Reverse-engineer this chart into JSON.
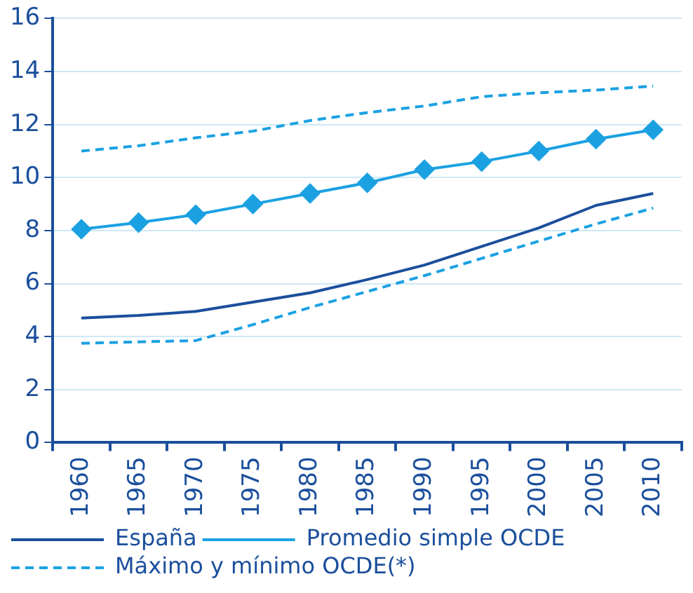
{
  "chart_data": {
    "type": "line",
    "categories": [
      "1960",
      "1965",
      "1970",
      "1975",
      "1980",
      "1985",
      "1990",
      "1995",
      "2000",
      "2005",
      "2010"
    ],
    "series": [
      {
        "name": "España",
        "color": "#1b4f9c",
        "values": [
          4.7,
          4.8,
          4.95,
          5.3,
          5.65,
          6.15,
          6.7,
          7.4,
          8.1,
          8.95,
          9.4
        ],
        "marker": "none",
        "line_style": "solid"
      },
      {
        "name": "Promedio simple OCDE",
        "color": "#1ba1e2",
        "values": [
          8.05,
          8.3,
          8.6,
          9.0,
          9.4,
          9.8,
          10.3,
          10.6,
          11.0,
          11.45,
          11.8
        ],
        "marker": "diamond",
        "line_style": "solid"
      },
      {
        "name": "Máximo y mínimo OCDE(*)",
        "color": "#1ba1e2",
        "values": [
          11.0,
          11.2,
          11.5,
          11.75,
          12.15,
          12.45,
          12.7,
          13.05,
          13.2,
          13.3,
          13.45
        ],
        "marker": "none",
        "line_style": "dashed"
      },
      {
        "color": "#1ba1e2",
        "values": [
          3.75,
          3.8,
          3.85,
          4.45,
          5.1,
          5.7,
          6.3,
          6.95,
          7.6,
          8.25,
          8.85
        ],
        "marker": "none",
        "line_style": "dashed"
      }
    ],
    "ylim": [
      0,
      16
    ],
    "yticks": [
      0,
      2,
      4,
      6,
      8,
      10,
      12,
      14,
      16
    ],
    "grid": "y",
    "legend": "bottom left"
  }
}
